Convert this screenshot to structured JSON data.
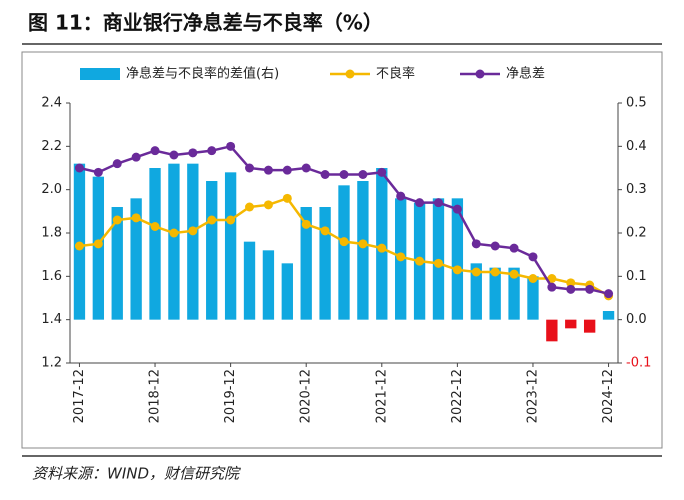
{
  "chart_data": {
    "type": "bar_line",
    "title": "图 11：商业银行净息差与不良率（%）",
    "source": "资料来源：WIND，财信研究院",
    "categories": [
      "2017-12",
      null,
      null,
      null,
      "2018-12",
      null,
      null,
      null,
      "2019-12",
      null,
      null,
      null,
      "2020-12",
      null,
      null,
      null,
      "2021-12",
      null,
      null,
      null,
      "2022-12",
      null,
      null,
      null,
      "2023-12",
      null,
      null,
      null,
      "2024-12"
    ],
    "series": [
      {
        "name": "净息差与不良率的差值(右)",
        "type": "bar",
        "axis": "y2",
        "color": "#10a8e0",
        "negative_color": "#e8101a",
        "values": [
          0.36,
          0.33,
          0.26,
          0.28,
          0.35,
          0.36,
          0.36,
          0.32,
          0.34,
          0.18,
          0.16,
          0.13,
          0.26,
          0.26,
          0.31,
          0.32,
          0.35,
          0.28,
          0.27,
          0.28,
          0.28,
          0.13,
          0.12,
          0.12,
          0.1,
          -0.05,
          -0.02,
          -0.03,
          0.02
        ]
      },
      {
        "name": "不良率",
        "type": "line",
        "color": "#f5b800",
        "values": [
          1.74,
          1.75,
          1.86,
          1.87,
          1.83,
          1.8,
          1.81,
          1.86,
          1.86,
          1.92,
          1.93,
          1.96,
          1.84,
          1.81,
          1.76,
          1.75,
          1.73,
          1.69,
          1.67,
          1.66,
          1.63,
          1.62,
          1.62,
          1.61,
          1.59,
          1.59,
          1.57,
          1.56,
          1.51
        ]
      },
      {
        "name": "净息差",
        "type": "line",
        "color": "#6a2a9a",
        "values": [
          2.1,
          2.08,
          2.12,
          2.15,
          2.18,
          2.16,
          2.17,
          2.18,
          2.2,
          2.1,
          2.09,
          2.09,
          2.1,
          2.07,
          2.07,
          2.07,
          2.08,
          1.97,
          1.94,
          1.94,
          1.91,
          1.75,
          1.74,
          1.73,
          1.69,
          1.55,
          1.54,
          1.54,
          1.52
        ]
      }
    ],
    "ylim": [
      1.2,
      2.4
    ],
    "yticks": [
      1.2,
      1.4,
      1.6,
      1.8,
      {
        "value": 2,
        "label": "2.0"
      },
      2.2,
      2.4
    ],
    "y2lim": [
      -0.1,
      0.5
    ],
    "y2ticks": [
      {
        "value": -0.1,
        "label": "-0.1"
      },
      {
        "value": 0,
        "label": "0.0"
      },
      0.1,
      0.2,
      0.3,
      0.4,
      0.5
    ],
    "y2tick_color": "#e8101a"
  }
}
